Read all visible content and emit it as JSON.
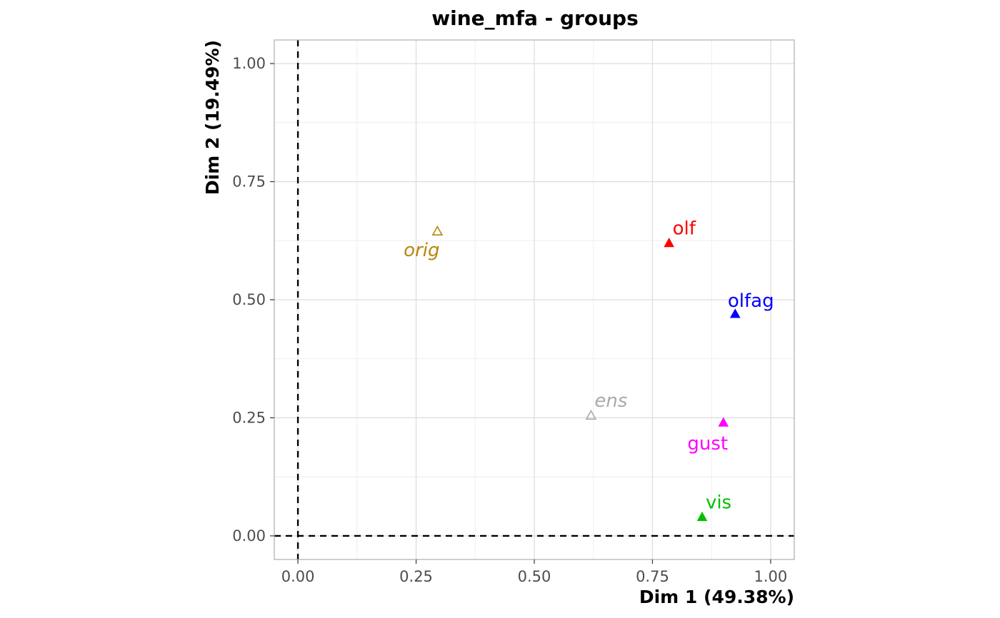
{
  "chart_data": {
    "type": "scatter",
    "title": "wine_mfa - groups",
    "xlabel": "Dim 1 (49.38%)",
    "ylabel": "Dim 2 (19.49%)",
    "xlim": [
      -0.05,
      1.05
    ],
    "ylim": [
      -0.05,
      1.05
    ],
    "x_ticks": [
      0.0,
      0.25,
      0.5,
      0.75,
      1.0
    ],
    "x_tick_labels": [
      "0.00",
      "0.25",
      "0.50",
      "0.75",
      "1.00"
    ],
    "y_ticks": [
      0.0,
      0.25,
      0.5,
      0.75,
      1.0
    ],
    "y_tick_labels": [
      "0.00",
      "0.25",
      "0.50",
      "0.75",
      "1.00"
    ],
    "grid": true,
    "reference_lines": {
      "x": 0,
      "y": 0,
      "style": "dashed"
    },
    "points": [
      {
        "label": "olf",
        "x": 0.785,
        "y": 0.62,
        "color": "#ff0000",
        "filled": true,
        "italic": false,
        "label_pos": "above-right"
      },
      {
        "label": "olfag",
        "x": 0.925,
        "y": 0.47,
        "color": "#0000ff",
        "filled": true,
        "italic": false,
        "label_pos": "above"
      },
      {
        "label": "gust",
        "x": 0.9,
        "y": 0.24,
        "color": "#ff00ff",
        "filled": true,
        "italic": false,
        "label_pos": "below-left"
      },
      {
        "label": "vis",
        "x": 0.855,
        "y": 0.04,
        "color": "#00c000",
        "filled": true,
        "italic": false,
        "label_pos": "above-right"
      },
      {
        "label": "orig",
        "x": 0.295,
        "y": 0.645,
        "color": "#b8860b",
        "filled": false,
        "italic": true,
        "label_pos": "below-left"
      },
      {
        "label": "ens",
        "x": 0.62,
        "y": 0.255,
        "color": "#aaaaaa",
        "filled": false,
        "italic": true,
        "label_pos": "above-right"
      }
    ]
  }
}
